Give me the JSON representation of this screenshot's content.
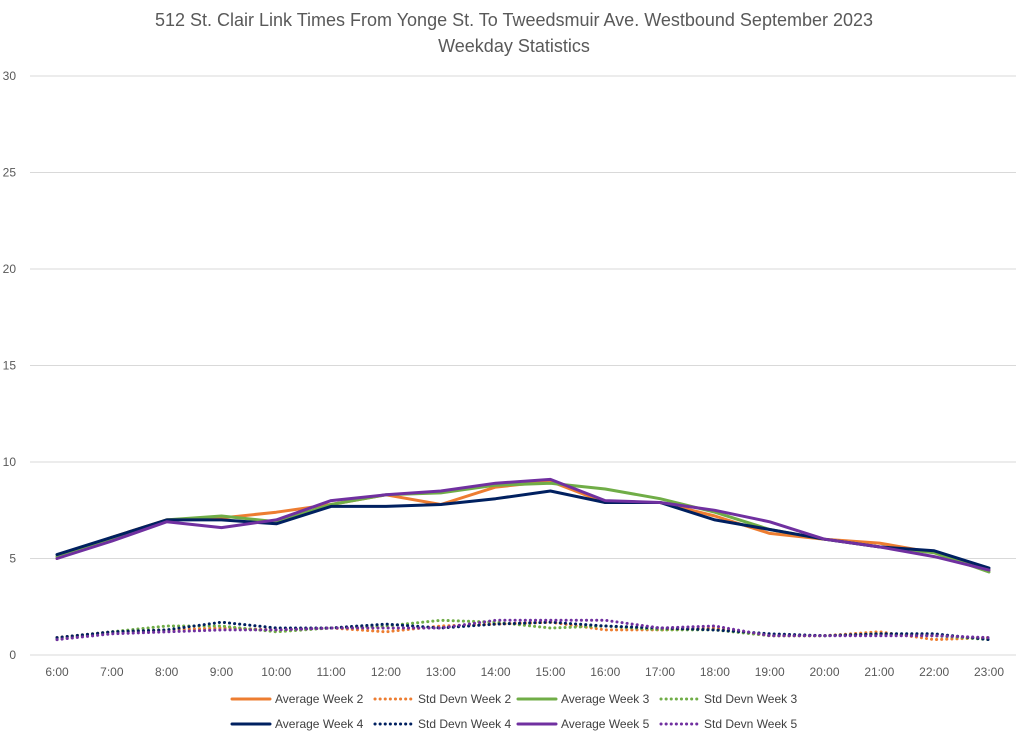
{
  "chart_data": {
    "type": "line",
    "title": "512 St. Clair Link Times From Yonge St. To Tweedsmuir Ave. Westbound September 2023",
    "subtitle": "Weekday Statistics",
    "xlabel": "",
    "ylabel": "",
    "ylim": [
      0,
      30
    ],
    "yticks": [
      0,
      5,
      10,
      15,
      20,
      25,
      30
    ],
    "grid": true,
    "legend_position": "bottom",
    "categories": [
      "6:00",
      "7:00",
      "8:00",
      "9:00",
      "10:00",
      "11:00",
      "12:00",
      "13:00",
      "14:00",
      "15:00",
      "16:00",
      "17:00",
      "18:00",
      "19:00",
      "20:00",
      "21:00",
      "22:00",
      "23:00"
    ],
    "series": [
      {
        "name": "Average Week 2",
        "color": "#ED7D31",
        "style": "solid",
        "values": [
          5.0,
          6.1,
          7.0,
          7.1,
          7.4,
          7.8,
          8.3,
          7.8,
          8.7,
          9.0,
          7.9,
          7.9,
          7.2,
          6.3,
          6.0,
          5.8,
          5.3,
          4.4
        ]
      },
      {
        "name": "Std Devn Week 2",
        "color": "#ED7D31",
        "style": "dotted",
        "values": [
          0.9,
          1.2,
          1.3,
          1.4,
          1.3,
          1.4,
          1.2,
          1.5,
          1.6,
          1.7,
          1.3,
          1.3,
          1.4,
          1.0,
          1.0,
          1.2,
          0.8,
          0.9
        ]
      },
      {
        "name": "Average Week 3",
        "color": "#70AD47",
        "style": "solid",
        "values": [
          5.1,
          6.0,
          7.0,
          7.2,
          6.9,
          7.8,
          8.3,
          8.4,
          8.8,
          8.9,
          8.6,
          8.1,
          7.4,
          6.5,
          6.0,
          5.6,
          5.3,
          4.3
        ]
      },
      {
        "name": "Std Devn Week 3",
        "color": "#70AD47",
        "style": "dotted",
        "values": [
          0.8,
          1.2,
          1.5,
          1.5,
          1.2,
          1.4,
          1.5,
          1.8,
          1.7,
          1.4,
          1.5,
          1.3,
          1.3,
          1.0,
          1.0,
          1.1,
          1.0,
          0.8
        ]
      },
      {
        "name": "Average Week 4",
        "color": "#002060",
        "style": "solid",
        "values": [
          5.2,
          6.1,
          7.0,
          7.0,
          6.8,
          7.7,
          7.7,
          7.8,
          8.1,
          8.5,
          7.9,
          7.9,
          7.0,
          6.5,
          6.0,
          5.6,
          5.4,
          4.5
        ]
      },
      {
        "name": "Std Devn Week 4",
        "color": "#002060",
        "style": "dotted",
        "values": [
          0.9,
          1.2,
          1.3,
          1.7,
          1.4,
          1.4,
          1.6,
          1.4,
          1.6,
          1.7,
          1.5,
          1.4,
          1.3,
          1.1,
          1.0,
          1.1,
          1.1,
          0.8
        ]
      },
      {
        "name": "Average Week 5",
        "color": "#7030A0",
        "style": "solid",
        "values": [
          5.0,
          5.9,
          6.9,
          6.6,
          7.0,
          8.0,
          8.3,
          8.5,
          8.9,
          9.1,
          8.0,
          7.9,
          7.5,
          6.9,
          6.0,
          5.6,
          5.1,
          4.4
        ]
      },
      {
        "name": "Std Devn Week 5",
        "color": "#7030A0",
        "style": "dotted",
        "values": [
          0.8,
          1.1,
          1.2,
          1.3,
          1.3,
          1.4,
          1.4,
          1.4,
          1.8,
          1.8,
          1.8,
          1.4,
          1.5,
          1.0,
          1.0,
          1.0,
          1.0,
          0.9
        ]
      }
    ]
  }
}
